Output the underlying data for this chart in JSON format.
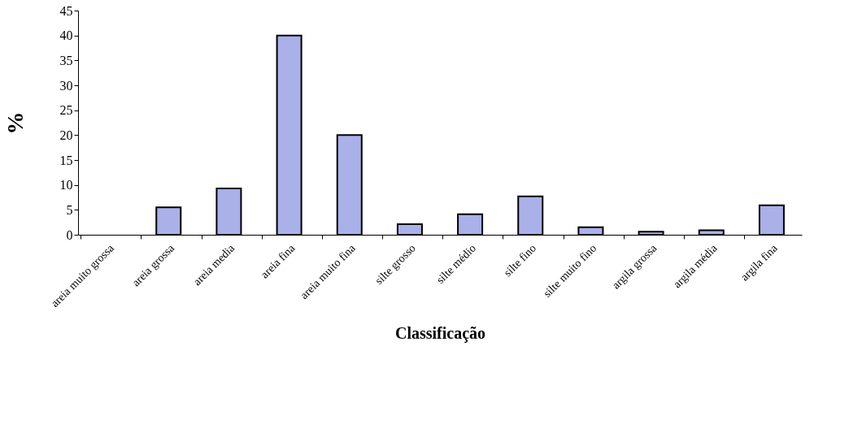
{
  "chart_data": {
    "type": "bar",
    "xlabel": "Classificação",
    "ylabel": "%",
    "categories": [
      "areia muito grossa",
      "areia grossa",
      "areia media",
      "areia fina",
      "areia muito fina",
      "silte grosso",
      "silte médio",
      "silte fino",
      "silte muito fino",
      "argila grossa",
      "argila média",
      "argila fina"
    ],
    "values": [
      0,
      5.5,
      9.3,
      40,
      20,
      2.1,
      4.1,
      7.7,
      1.5,
      0.6,
      0.9,
      5.9
    ],
    "color": "#aab0e8",
    "ylim": [
      0,
      45
    ],
    "yticks": [
      0,
      5,
      10,
      15,
      20,
      25,
      30,
      35,
      40,
      45
    ],
    "grid": false
  }
}
